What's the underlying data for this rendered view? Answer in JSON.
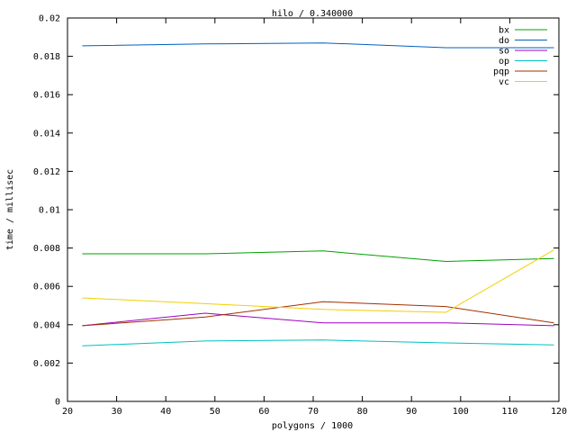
{
  "chart_data": {
    "type": "line",
    "title": "hilo / 0.340000",
    "xlabel": "polygons / 1000",
    "ylabel": "time / millisec",
    "xlim": [
      20,
      120
    ],
    "ylim": [
      0,
      0.02
    ],
    "x_ticks": [
      20,
      30,
      40,
      50,
      60,
      70,
      80,
      90,
      100,
      110,
      120
    ],
    "x_tick_labels": [
      "20",
      "30",
      "40",
      "50",
      "60",
      "70",
      "80",
      "90",
      "100",
      "110",
      "120"
    ],
    "y_ticks": [
      0,
      0.002,
      0.004,
      0.006,
      0.008,
      0.01,
      0.012,
      0.014,
      0.016,
      0.018,
      0.02
    ],
    "y_tick_labels": [
      "0",
      "0.002",
      "0.004",
      "0.006",
      "0.008",
      "0.01",
      "0.012",
      "0.014",
      "0.016",
      "0.018",
      "0.02"
    ],
    "grid": false,
    "legend_position": "top-right",
    "x": [
      23,
      48,
      72,
      97,
      119
    ],
    "series": [
      {
        "name": "bx",
        "color": "#00a000",
        "values": [
          0.0077,
          0.0077,
          0.00785,
          0.0073,
          0.00745
        ]
      },
      {
        "name": "do",
        "color": "#0060c0",
        "values": [
          0.01855,
          0.01865,
          0.0187,
          0.01845,
          0.01845
        ]
      },
      {
        "name": "so",
        "color": "#a000c0",
        "values": [
          0.00395,
          0.0046,
          0.0041,
          0.0041,
          0.00395
        ]
      },
      {
        "name": "op",
        "color": "#00c0c0",
        "values": [
          0.0029,
          0.00315,
          0.0032,
          0.00305,
          0.00295
        ]
      },
      {
        "name": "pqp",
        "color": "#a03000",
        "values": [
          0.00395,
          0.0044,
          0.0052,
          0.00495,
          0.0041
        ]
      },
      {
        "name": "vc",
        "color": "#f0d000",
        "values": [
          0.0054,
          0.0051,
          0.0048,
          0.00465,
          0.0079
        ]
      }
    ]
  }
}
